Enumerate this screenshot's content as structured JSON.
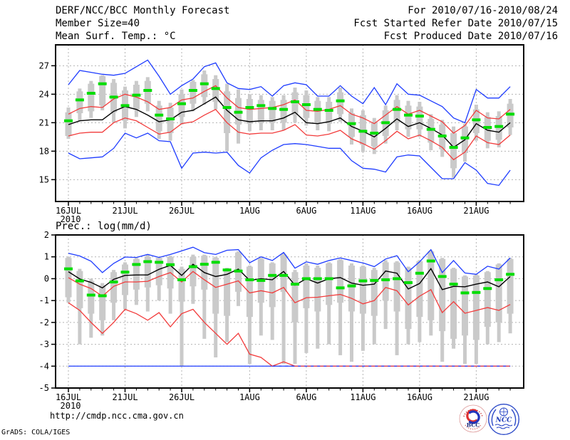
{
  "header": {
    "left_line1": "DERF/NCC/BCC Monthly Forecast",
    "left_line2": "Member Size=40",
    "right_line1": "For 2010/07/16-2010/08/24",
    "right_line2": "Fcst Started Refer Date 2010/07/15",
    "right_line3": "Fcst Produced Date 2010/07/16"
  },
  "footer": {
    "url": "http://cmdp.ncc.cma.gov.cn",
    "credit": "GrADS: COLA/IGES"
  },
  "logos": {
    "bcc_label": "BCC",
    "ncc_label": "NCC"
  },
  "colors": {
    "bar_gray": "#cacaca",
    "green": "#00dd00",
    "red": "#f23b3b",
    "blue": "#1e3cff",
    "black": "#000000",
    "grid": "#b4b4b4",
    "frame": "#000000"
  },
  "chart_data": [
    {
      "type": "line",
      "title": "Mean Surf. Temp.: °C",
      "x_sub_label": "2010",
      "n_days": 40,
      "x_tick_days": [
        0,
        5,
        10,
        16,
        21,
        26,
        31,
        36
      ],
      "x_tick_labels": [
        "16JUL",
        "21JUL",
        "26JUL",
        "1AUG",
        "6AUG",
        "11AUG",
        "16AUG",
        "21AUG"
      ],
      "ylim": [
        12.7,
        29.2
      ],
      "yticks": [
        27,
        24,
        21,
        18,
        15
      ],
      "ytick_labels": [
        "27",
        "24",
        "21",
        "18",
        "15"
      ],
      "ygrid": [
        27,
        24,
        21,
        18,
        15
      ],
      "legend": "none",
      "grid": true,
      "series": [
        {
          "name": "ensemble-max",
          "color": "blue",
          "values": [
            25.0,
            26.5,
            26.3,
            26.1,
            26.0,
            26.2,
            26.9,
            27.6,
            25.9,
            24.0,
            24.9,
            25.6,
            26.9,
            27.3,
            25.2,
            24.6,
            24.5,
            24.8,
            23.8,
            24.9,
            25.2,
            25.0,
            23.8,
            23.8,
            24.9,
            23.8,
            23.0,
            24.7,
            22.9,
            25.1,
            24.0,
            23.9,
            23.3,
            22.7,
            21.5,
            21.0,
            24.5,
            23.6,
            23.6,
            24.8
          ]
        },
        {
          "name": "mean-plus-sd",
          "color": "red",
          "values": [
            21.9,
            22.5,
            22.7,
            22.6,
            23.5,
            24.0,
            23.7,
            23.2,
            22.4,
            22.6,
            23.4,
            23.6,
            24.3,
            24.9,
            23.6,
            22.6,
            22.4,
            22.5,
            22.6,
            22.9,
            23.4,
            22.3,
            22.2,
            22.4,
            22.8,
            21.9,
            21.5,
            20.9,
            21.8,
            22.7,
            21.9,
            22.3,
            21.7,
            21.1,
            19.9,
            20.7,
            22.3,
            21.5,
            21.4,
            22.4
          ]
        },
        {
          "name": "ensemble-mean",
          "color": "black",
          "values": [
            20.8,
            21.2,
            21.3,
            21.3,
            22.2,
            22.7,
            22.4,
            21.8,
            21.1,
            21.3,
            22.1,
            22.3,
            23.0,
            23.7,
            22.3,
            21.3,
            21.1,
            21.2,
            21.2,
            21.5,
            22.1,
            21.0,
            20.9,
            21.1,
            21.5,
            20.6,
            20.1,
            19.5,
            20.4,
            21.4,
            20.6,
            21.0,
            20.4,
            19.7,
            18.4,
            19.2,
            20.9,
            20.2,
            20.0,
            21.0
          ]
        },
        {
          "name": "mean-minus-sd",
          "color": "red",
          "values": [
            19.6,
            19.9,
            20.0,
            20.0,
            21.0,
            21.5,
            21.2,
            20.5,
            19.8,
            20.0,
            20.9,
            21.1,
            21.8,
            22.4,
            21.0,
            20.0,
            19.8,
            19.9,
            19.9,
            20.2,
            20.8,
            19.7,
            19.6,
            19.8,
            20.2,
            19.3,
            18.8,
            18.2,
            19.1,
            20.1,
            19.3,
            19.7,
            19.1,
            18.4,
            17.1,
            17.9,
            19.6,
            18.9,
            18.7,
            19.7
          ]
        },
        {
          "name": "ensemble-min",
          "color": "blue",
          "values": [
            17.8,
            17.2,
            17.3,
            17.4,
            18.3,
            19.9,
            19.4,
            19.9,
            19.1,
            19.0,
            16.2,
            17.8,
            17.9,
            17.8,
            17.9,
            16.5,
            15.7,
            17.3,
            18.1,
            18.7,
            18.8,
            18.7,
            18.5,
            18.3,
            18.3,
            17.0,
            16.2,
            16.1,
            15.8,
            17.4,
            17.6,
            17.5,
            16.3,
            15.1,
            15.1,
            16.8,
            16.0,
            14.6,
            14.4,
            16.0
          ]
        }
      ],
      "green_dash_values": [
        21.2,
        23.4,
        24.1,
        25.1,
        23.7,
        22.8,
        23.9,
        24.4,
        21.8,
        21.4,
        23.0,
        24.4,
        25.1,
        24.6,
        22.6,
        22.1,
        22.6,
        22.8,
        22.5,
        22.4,
        23.2,
        22.9,
        22.4,
        22.3,
        23.3,
        20.9,
        20.1,
        19.9,
        21.0,
        22.4,
        21.8,
        21.7,
        20.3,
        19.6,
        18.4,
        19.4,
        21.3,
        20.5,
        20.6,
        21.9
      ],
      "bars": {
        "inner_hi": [
          22.1,
          24.3,
          25.1,
          25.9,
          25.2,
          24.4,
          25.0,
          25.4,
          22.8,
          22.6,
          24.0,
          25.3,
          26.1,
          25.6,
          24.3,
          23.6,
          23.5,
          23.4,
          23.3,
          23.4,
          24.2,
          23.9,
          23.3,
          23.2,
          24.2,
          22.0,
          21.8,
          21.0,
          22.3,
          23.4,
          22.8,
          22.7,
          21.4,
          20.8,
          19.9,
          20.6,
          22.4,
          21.6,
          21.7,
          23.0
        ],
        "inner_lo": [
          19.6,
          22.0,
          22.2,
          22.8,
          22.1,
          21.2,
          22.4,
          23.0,
          20.1,
          19.9,
          21.6,
          23.0,
          23.7,
          23.2,
          19.9,
          20.8,
          20.9,
          21.0,
          21.0,
          21.0,
          21.8,
          21.5,
          21.0,
          20.9,
          21.9,
          19.5,
          18.7,
          18.5,
          19.6,
          21.0,
          20.3,
          20.3,
          18.9,
          18.2,
          16.2,
          17.8,
          19.9,
          19.1,
          19.2,
          20.5
        ],
        "outer_hi": [
          22.6,
          24.6,
          25.4,
          26.0,
          25.6,
          24.8,
          25.4,
          25.8,
          23.3,
          23.1,
          24.5,
          25.5,
          26.5,
          26.0,
          25.1,
          24.5,
          24.0,
          23.9,
          23.7,
          23.9,
          24.7,
          24.4,
          23.7,
          23.7,
          24.7,
          22.5,
          22.3,
          21.5,
          22.8,
          23.9,
          23.3,
          23.2,
          21.9,
          21.3,
          20.6,
          20.9,
          22.9,
          22.1,
          22.2,
          23.5
        ],
        "outer_lo": [
          19.3,
          21.2,
          21.5,
          22.3,
          21.0,
          20.4,
          21.6,
          22.2,
          19.3,
          19.1,
          20.8,
          22.2,
          22.9,
          22.4,
          18.0,
          18.8,
          20.1,
          20.2,
          20.2,
          20.2,
          21.0,
          20.7,
          20.2,
          20.1,
          21.1,
          18.7,
          17.9,
          17.7,
          18.8,
          20.2,
          19.5,
          19.5,
          18.1,
          17.4,
          15.2,
          16.9,
          19.1,
          18.3,
          18.4,
          19.7
        ]
      }
    },
    {
      "type": "line",
      "title": "Prec.: log(mm/d)",
      "x_sub_label": "2010",
      "n_days": 40,
      "x_tick_days": [
        0,
        5,
        10,
        16,
        21,
        26,
        31,
        36
      ],
      "x_tick_labels": [
        "16JUL",
        "21JUL",
        "26JUL",
        "1AUG",
        "6AUG",
        "11AUG",
        "16AUG",
        "21AUG"
      ],
      "ylim": [
        -5,
        2
      ],
      "yticks": [
        2,
        1,
        0,
        -1,
        -2,
        -3,
        -4,
        -5
      ],
      "ytick_labels": [
        "2",
        "1",
        "0",
        "-1",
        "-2",
        "-3",
        "-4",
        "-5"
      ],
      "ygrid": [
        1,
        0,
        -1,
        -2,
        -3,
        -4
      ],
      "legend": "none",
      "grid": true,
      "series": [
        {
          "name": "ensemble-max",
          "color": "blue",
          "values": [
            1.16,
            1.04,
            0.8,
            0.28,
            0.7,
            0.99,
            0.97,
            1.11,
            0.97,
            1.11,
            1.27,
            1.44,
            1.19,
            1.11,
            1.3,
            1.33,
            0.73,
            1.0,
            0.83,
            1.2,
            0.48,
            0.77,
            0.66,
            0.83,
            0.95,
            0.83,
            0.72,
            0.55,
            0.9,
            1.05,
            0.32,
            0.77,
            1.33,
            0.28,
            0.83,
            0.26,
            0.2,
            0.57,
            0.44,
            0.95
          ]
        },
        {
          "name": "mean-plus-sd",
          "color": "red",
          "values": [
            0.05,
            -0.25,
            -0.45,
            -0.8,
            -0.35,
            -0.15,
            -0.15,
            -0.12,
            0.1,
            0.28,
            -0.15,
            0.33,
            -0.05,
            -0.4,
            -0.25,
            -0.1,
            -0.65,
            -0.55,
            -0.65,
            -0.4,
            -1.1,
            -0.87,
            -0.85,
            -0.78,
            -0.72,
            -0.9,
            -1.15,
            -1.0,
            -0.4,
            -0.55,
            -1.2,
            -0.8,
            -0.5,
            -1.55,
            -1.05,
            -1.58,
            -1.45,
            -1.32,
            -1.45,
            -1.18
          ]
        },
        {
          "name": "ensemble-mean",
          "color": "black",
          "values": [
            0.32,
            -0.01,
            -0.17,
            -0.42,
            -0.03,
            0.15,
            0.17,
            0.17,
            0.43,
            0.61,
            0.15,
            0.66,
            0.28,
            0.1,
            0.2,
            0.44,
            -0.08,
            0.0,
            -0.05,
            0.33,
            -0.3,
            0.0,
            -0.2,
            0.0,
            0.05,
            -0.2,
            -0.3,
            -0.25,
            0.35,
            0.25,
            -0.47,
            -0.22,
            0.46,
            -0.5,
            -0.35,
            -0.37,
            -0.25,
            -0.15,
            -0.37,
            0.1
          ]
        },
        {
          "name": "mean-minus-sd",
          "color": "red",
          "values": [
            -1.1,
            -1.45,
            -2.0,
            -2.5,
            -2.0,
            -1.4,
            -1.6,
            -1.9,
            -1.55,
            -2.2,
            -1.6,
            -1.4,
            -2.0,
            -2.5,
            -3.0,
            -2.5,
            -3.45,
            -3.6,
            -4.0,
            -3.8,
            -4.0,
            -4.0,
            -4.0,
            -4.0,
            -4.0,
            -4.0,
            -4.0,
            -4.0,
            -4.0,
            -4.0,
            -4.0,
            -4.0,
            -4.0,
            -4.0,
            -4.0,
            -4.0,
            -4.0,
            -4.0,
            -4.0,
            -4.0
          ]
        },
        {
          "name": "ensemble-min",
          "color": "blue",
          "values": [
            -4.0,
            -4.0,
            -4.0,
            -4.0,
            -4.0,
            -4.0,
            -4.0,
            -4.0,
            -4.0,
            -4.0,
            -4.0,
            -4.0,
            -4.0,
            -4.0,
            -4.0,
            -4.0,
            -4.0,
            -4.0,
            -4.0,
            -4.0,
            -4.0,
            -4.0,
            -4.0,
            -4.0,
            -4.0,
            -4.0,
            -4.0,
            -4.0,
            -4.0,
            -4.0,
            -4.0,
            -4.0,
            -4.0,
            -4.0,
            -4.0,
            -4.0,
            -4.0,
            -4.0,
            -4.0,
            -4.0
          ]
        }
      ],
      "green_dash_values": [
        0.45,
        -0.1,
        -0.75,
        -0.78,
        -0.15,
        0.3,
        0.65,
        0.78,
        0.75,
        0.64,
        -0.05,
        0.55,
        0.66,
        0.75,
        0.4,
        0.35,
        -0.05,
        -0.08,
        0.15,
        0.15,
        -0.25,
        0.0,
        0.0,
        0.0,
        -0.42,
        -0.33,
        -0.1,
        -0.08,
        -0.05,
        0.0,
        -0.18,
        0.25,
        0.81,
        0.1,
        -0.25,
        -0.65,
        -0.63,
        -0.45,
        -0.05,
        0.2
      ],
      "bars": {
        "inner_hi": [
          0.95,
          0.35,
          -0.1,
          -0.3,
          0.3,
          0.65,
          0.9,
          1.0,
          0.95,
          1.0,
          0.45,
          1.0,
          1.05,
          0.95,
          0.45,
          1.2,
          0.55,
          0.9,
          0.7,
          1.1,
          0.3,
          0.6,
          0.5,
          0.7,
          0.85,
          0.6,
          0.55,
          0.4,
          0.75,
          0.74,
          0.5,
          0.8,
          1.25,
          0.9,
          0.45,
          0.1,
          0.15,
          0.3,
          0.65,
          0.9
        ],
        "inner_lo": [
          -0.85,
          -1.35,
          -1.6,
          -1.9,
          -1.1,
          -0.75,
          -0.5,
          -0.4,
          -0.3,
          -0.45,
          -1.05,
          -0.35,
          -0.5,
          -1.6,
          -1.7,
          -0.6,
          -1.75,
          -1.1,
          -1.3,
          -0.6,
          -2.0,
          -1.35,
          -1.5,
          -1.2,
          -1.1,
          -1.5,
          -1.6,
          -1.7,
          -1.0,
          -1.5,
          -2.3,
          -1.75,
          -1.9,
          -2.4,
          -2.75,
          -2.6,
          -2.8,
          -2.2,
          -2.0,
          -1.6
        ],
        "outer_hi": [
          1.0,
          0.45,
          0.0,
          -0.2,
          0.4,
          0.75,
          0.95,
          1.1,
          0.95,
          1.05,
          0.55,
          1.1,
          1.1,
          1.0,
          0.5,
          1.25,
          0.6,
          0.95,
          0.75,
          1.15,
          0.4,
          0.7,
          0.6,
          0.75,
          0.9,
          0.7,
          0.6,
          0.5,
          0.85,
          0.8,
          0.55,
          0.85,
          1.3,
          0.95,
          0.5,
          0.15,
          0.2,
          0.35,
          0.7,
          0.95
        ],
        "outer_lo": [
          -1.1,
          -3.0,
          -2.7,
          -2.6,
          -1.9,
          -1.4,
          -1.2,
          -1.5,
          -1.0,
          -1.6,
          -4.0,
          -1.15,
          -2.75,
          -3.6,
          -2.9,
          -1.25,
          -3.9,
          -2.6,
          -2.8,
          -3.9,
          -3.9,
          -3.4,
          -3.2,
          -3.0,
          -3.5,
          -3.8,
          -3.3,
          -3.0,
          -2.3,
          -3.5,
          -3.0,
          -2.9,
          -2.6,
          -3.8,
          -3.2,
          -3.9,
          -3.9,
          -3.0,
          -2.9,
          -2.5
        ]
      },
      "overlay_min_dashed": {
        "value": -4.0,
        "from_day": 18,
        "to_day": 39,
        "color": "blue",
        "dash": "4 5"
      }
    }
  ]
}
